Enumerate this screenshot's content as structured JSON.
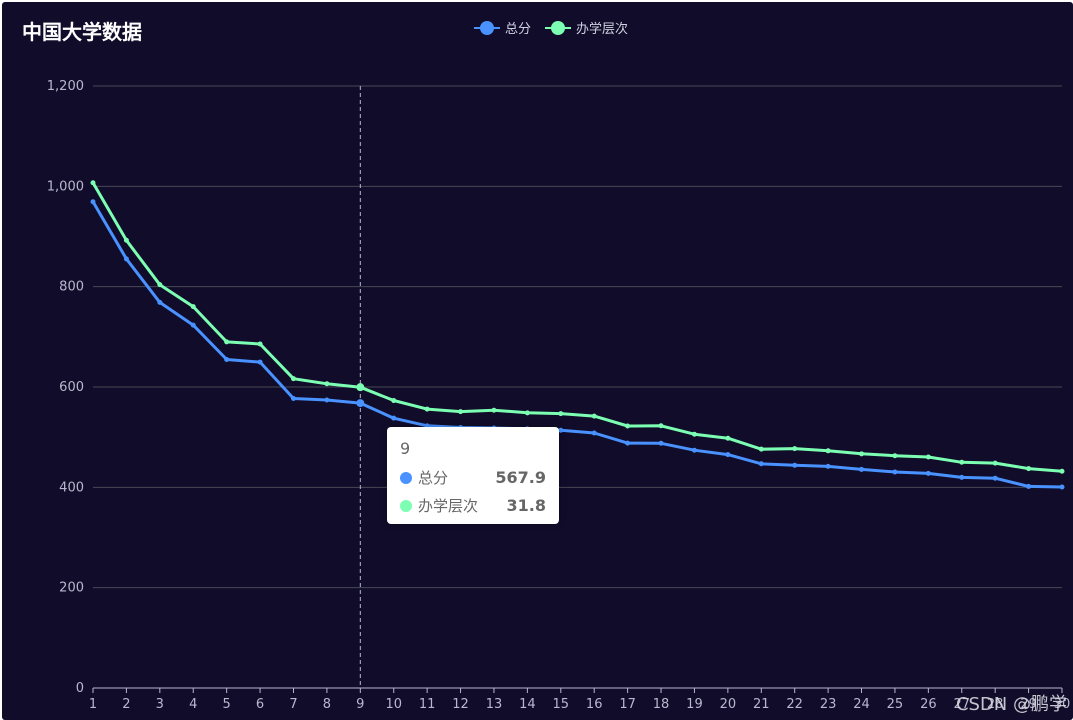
{
  "title": "中国大学数据",
  "legend": [
    {
      "name": "总分",
      "color": "#4992ff"
    },
    {
      "name": "办学层次",
      "color": "#7cffb2"
    }
  ],
  "tooltip": {
    "header": "9",
    "rows": [
      {
        "name": "总分",
        "value": "567.9",
        "color": "#4992ff"
      },
      {
        "name": "办学层次",
        "value": "31.8",
        "color": "#7cffb2"
      }
    ]
  },
  "watermark": "CSDN @鹏学",
  "chart_data": {
    "type": "line",
    "stacked": true,
    "x": [
      "1",
      "2",
      "3",
      "4",
      "5",
      "6",
      "7",
      "8",
      "9",
      "10",
      "11",
      "12",
      "13",
      "14",
      "15",
      "16",
      "17",
      "18",
      "19",
      "20",
      "21",
      "22",
      "23",
      "24",
      "25",
      "26",
      "27",
      "28",
      "29",
      "30"
    ],
    "y_ticks": [
      "0",
      "200",
      "400",
      "600",
      "800",
      "1,000",
      "1,200"
    ],
    "ylim": [
      0,
      1200
    ],
    "grid": true,
    "legend_position": "top-center",
    "series": [
      {
        "name": "总分",
        "color": "#4992ff",
        "values": [
          969.2,
          855.3,
          768.7,
          723.4,
          654.8,
          649.7,
          577.0,
          574.0,
          567.9,
          537.9,
          522.6,
          519.3,
          518.3,
          516.6,
          513.8,
          508.3,
          488.1,
          487.8,
          474.0,
          465.3,
          447.0,
          443.9,
          441.8,
          435.7,
          430.5,
          427.8,
          419.8,
          418.2,
          401.8,
          400.7
        ]
      },
      {
        "name": "办学层次",
        "color": "#7cffb2",
        "values": [
          37.9,
          37.2,
          35.3,
          36.9,
          35.1,
          36.0,
          39.6,
          32.4,
          31.8,
          35.1,
          33.4,
          31.6,
          35.4,
          31.9,
          33.1,
          33.7,
          34.1,
          34.9,
          31.9,
          32.6,
          29.1,
          33.3,
          31.0,
          31.1,
          32.5,
          32.7,
          30.2,
          30.1,
          35.6,
          31.4
        ]
      }
    ]
  }
}
